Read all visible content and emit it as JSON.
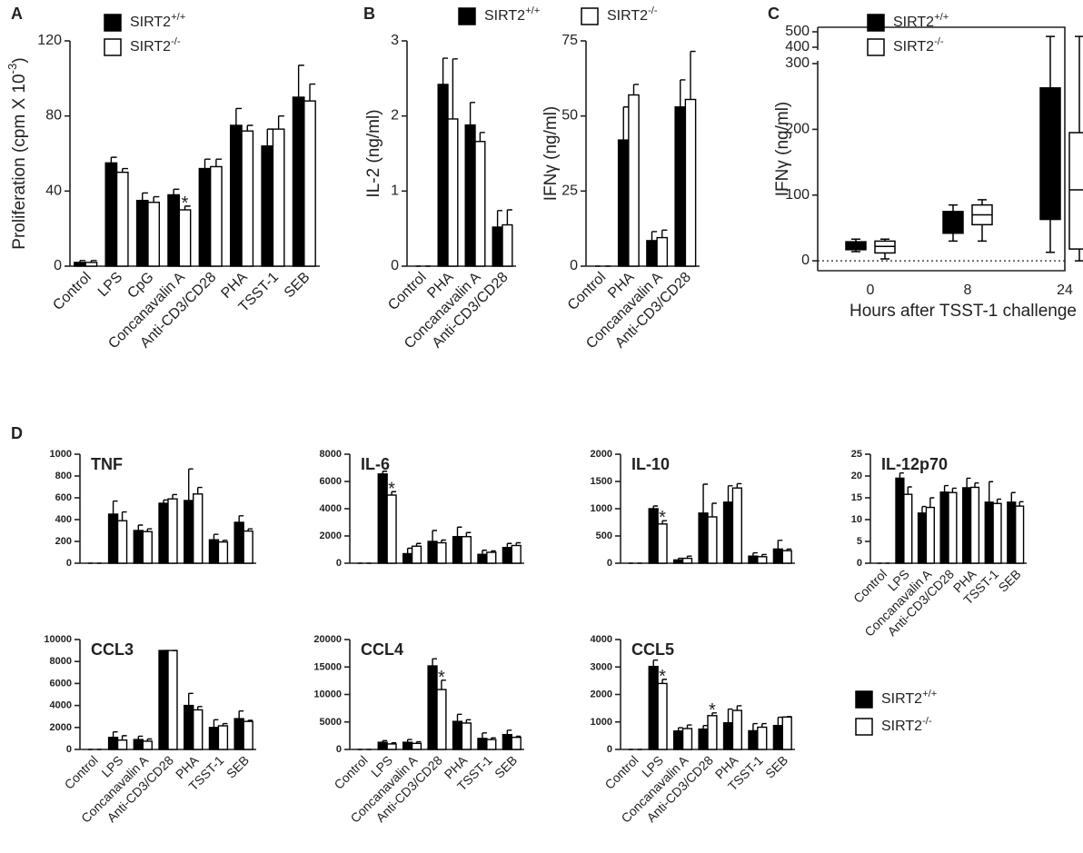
{
  "chart_data": [
    {
      "type": "bar",
      "panel": "A",
      "ylabel": "Proliferation (cpm X 10-3)",
      "categories": [
        "Control",
        "LPS",
        "CpG",
        "Concanavalin A",
        "Anti-CD3/CD28",
        "PHA",
        "TSST-1",
        "SEB"
      ],
      "series": [
        {
          "name": "SIRT2+/+",
          "color": "#000000",
          "values": [
            2,
            55,
            35,
            38,
            52,
            75,
            64,
            90
          ],
          "errors": [
            1,
            3,
            4,
            3,
            5,
            9,
            9,
            17
          ]
        },
        {
          "name": "SIRT2-/-",
          "color": "#ffffff",
          "values": [
            2,
            50,
            34,
            30,
            53,
            72,
            73,
            88
          ],
          "errors": [
            1,
            2,
            3,
            2,
            4,
            3,
            7,
            9
          ]
        }
      ],
      "ylim": [
        0,
        120
      ],
      "yticks": [
        0,
        40,
        80,
        120
      ],
      "annotations": [
        {
          "text": "*",
          "series": 1,
          "index": 3
        }
      ]
    },
    {
      "type": "bar",
      "panel": "B",
      "ylabel": "IL-2 (ng/ml)",
      "categories": [
        "Control",
        "PHA",
        "Concanavalin A",
        "Anti-CD3/CD28"
      ],
      "series": [
        {
          "name": "SIRT2+/+",
          "color": "#000000",
          "values": [
            0,
            2.42,
            1.88,
            0.52
          ],
          "errors": [
            0,
            0.35,
            0.3,
            0.22
          ]
        },
        {
          "name": "SIRT2-/-",
          "color": "#ffffff",
          "values": [
            0,
            1.96,
            1.66,
            0.55
          ],
          "errors": [
            0,
            0.8,
            0.12,
            0.2
          ]
        }
      ],
      "ylim": [
        0,
        3
      ],
      "yticks": [
        0,
        1,
        2,
        3
      ]
    },
    {
      "type": "bar",
      "ylabel": "IFNγ (ng/ml)",
      "categories": [
        "Control",
        "PHA",
        "Concanavalin A",
        "Anti-CD3/CD28"
      ],
      "series": [
        {
          "color": "#000000",
          "values": [
            0,
            42,
            8.5,
            53
          ],
          "errors": [
            0,
            11,
            3,
            9
          ]
        },
        {
          "color": "#ffffff",
          "values": [
            0,
            57,
            9.5,
            55.5
          ],
          "errors": [
            0,
            3.5,
            2.5,
            16
          ]
        }
      ],
      "ylim": [
        0,
        75
      ],
      "yticks": [
        0,
        25,
        50,
        75
      ]
    },
    {
      "type": "box",
      "panel": "C",
      "ylabel": "IFNγ (ng/ml)",
      "xlabel": "Hours after TSST-1 challenge",
      "categories": [
        "0",
        "8",
        "24"
      ],
      "series": [
        {
          "name": "SIRT2+/+",
          "color": "#000000",
          "min": [
            14,
            30,
            13
          ],
          "q1": [
            17,
            42,
            63
          ],
          "median": [
            22,
            62,
            180
          ],
          "q3": [
            29,
            75,
            263
          ],
          "max": [
            33,
            85,
            470
          ]
        },
        {
          "name": "SIRT2-/-",
          "color": "#ffffff",
          "min": [
            3,
            30,
            0
          ],
          "q1": [
            12,
            55,
            18
          ],
          "median": [
            22,
            70,
            108
          ],
          "q3": [
            30,
            85,
            195
          ],
          "max": [
            33,
            93,
            470
          ]
        }
      ],
      "ylim": [
        -15,
        500
      ],
      "yticks": [
        0,
        100,
        200,
        300,
        400,
        500
      ],
      "axis_break": [
        300,
        400
      ],
      "reference_line": 0
    },
    {
      "type": "bar",
      "panel": "D",
      "title": "TNF",
      "series": [
        {
          "color": "#000000",
          "values": [
            0,
            450,
            300,
            550,
            575,
            215,
            375
          ],
          "errors": [
            0,
            120,
            50,
            30,
            290,
            50,
            60
          ]
        },
        {
          "color": "#ffffff",
          "values": [
            0,
            390,
            290,
            590,
            635,
            195,
            295
          ],
          "errors": [
            0,
            80,
            25,
            40,
            60,
            15,
            20
          ]
        }
      ],
      "ylim": [
        0,
        1000
      ],
      "yticks": [
        0,
        200,
        400,
        600,
        800,
        1000
      ]
    },
    {
      "type": "bar",
      "title": "IL-6",
      "series": [
        {
          "color": "#000000",
          "values": [
            0,
            6550,
            700,
            1600,
            1950,
            650,
            1150
          ],
          "errors": [
            0,
            200,
            400,
            800,
            700,
            300,
            300
          ]
        },
        {
          "color": "#ffffff",
          "values": [
            0,
            5000,
            1250,
            1500,
            1950,
            800,
            1300
          ],
          "errors": [
            0,
            250,
            200,
            200,
            300,
            100,
            200
          ]
        }
      ],
      "ylim": [
        0,
        8000
      ],
      "yticks": [
        0,
        2000,
        4000,
        6000,
        8000
      ],
      "annotations": [
        {
          "text": "*",
          "series": 1,
          "index": 1
        }
      ]
    },
    {
      "type": "bar",
      "title": "IL-10",
      "series": [
        {
          "color": "#000000",
          "values": [
            0,
            1000,
            60,
            920,
            1120,
            130,
            260
          ],
          "errors": [
            0,
            50,
            30,
            530,
            300,
            60,
            160
          ]
        },
        {
          "color": "#ffffff",
          "values": [
            0,
            720,
            90,
            850,
            1380,
            120,
            230
          ],
          "errors": [
            0,
            60,
            40,
            250,
            80,
            40,
            30
          ]
        }
      ],
      "ylim": [
        0,
        2000
      ],
      "yticks": [
        0,
        500,
        1000,
        1500,
        2000
      ],
      "annotations": [
        {
          "text": "*",
          "series": 1,
          "index": 1
        }
      ]
    },
    {
      "type": "bar",
      "title": "IL-12p70",
      "categories": [
        "Control",
        "LPS",
        "Concanavalin A",
        "Anti-CD3/CD28",
        "PHA",
        "TSST-1",
        "SEB"
      ],
      "series": [
        {
          "color": "#000000",
          "values": [
            0,
            19.5,
            11.5,
            16.3,
            17.3,
            14,
            14
          ],
          "errors": [
            0,
            1.2,
            1.5,
            1.5,
            2.2,
            4.7,
            2.2
          ]
        },
        {
          "color": "#ffffff",
          "values": [
            0,
            15.8,
            12.8,
            16.2,
            17.4,
            13.7,
            13.1
          ],
          "errors": [
            0,
            1.7,
            2.2,
            1,
            1,
            1,
            1
          ]
        }
      ],
      "ylim": [
        0,
        25
      ],
      "yticks": [
        0,
        5,
        10,
        15,
        20,
        25
      ]
    },
    {
      "type": "bar",
      "title": "CCL3",
      "categories": [
        "Control",
        "LPS",
        "Concanavalin A",
        "Anti-CD3/CD28",
        "PHA",
        "TSST-1",
        "SEB"
      ],
      "series": [
        {
          "color": "#000000",
          "values": [
            0,
            1100,
            900,
            9000,
            4000,
            2000,
            2800
          ],
          "errors": [
            0,
            500,
            300,
            0,
            1100,
            700,
            700
          ]
        },
        {
          "color": "#ffffff",
          "values": [
            0,
            850,
            750,
            9000,
            3600,
            2150,
            2550
          ],
          "errors": [
            0,
            400,
            200,
            0,
            300,
            200,
            100
          ]
        }
      ],
      "ylim": [
        0,
        10000
      ],
      "yticks": [
        0,
        2000,
        4000,
        6000,
        8000,
        10000
      ]
    },
    {
      "type": "bar",
      "title": "CCL4",
      "categories": [
        "Control",
        "LPS",
        "Concanavalin A",
        "Anti-CD3/CD28",
        "PHA",
        "TSST-1",
        "SEB"
      ],
      "series": [
        {
          "color": "#000000",
          "values": [
            0,
            1300,
            1300,
            15200,
            5100,
            2000,
            2700
          ],
          "errors": [
            0,
            300,
            500,
            1300,
            1300,
            1000,
            800
          ]
        },
        {
          "color": "#ffffff",
          "values": [
            0,
            1000,
            1100,
            10900,
            4800,
            1800,
            2200
          ],
          "errors": [
            0,
            200,
            300,
            1700,
            600,
            300,
            200
          ]
        }
      ],
      "ylim": [
        0,
        20000
      ],
      "yticks": [
        0,
        5000,
        10000,
        15000,
        20000
      ],
      "annotations": [
        {
          "text": "*",
          "series": 1,
          "index": 3
        }
      ]
    },
    {
      "type": "bar",
      "title": "CCL5",
      "categories": [
        "Control",
        "LPS",
        "Concanavalin A",
        "Anti-CD3/CD28",
        "PHA",
        "TSST-1",
        "SEB"
      ],
      "series": [
        {
          "color": "#000000",
          "values": [
            0,
            3020,
            670,
            740,
            970,
            680,
            870
          ],
          "errors": [
            0,
            230,
            120,
            130,
            500,
            260,
            300
          ]
        },
        {
          "color": "#ffffff",
          "values": [
            0,
            2400,
            760,
            1230,
            1420,
            810,
            1180
          ],
          "errors": [
            0,
            150,
            130,
            100,
            170,
            130,
            20
          ]
        }
      ],
      "ylim": [
        0,
        4000
      ],
      "yticks": [
        0,
        1000,
        2000,
        3000,
        4000
      ],
      "annotations": [
        {
          "text": "*",
          "series": 1,
          "index": 1
        },
        {
          "text": "*",
          "series": 1,
          "index": 3
        }
      ]
    },
    {
      "type": "legend",
      "series": [
        {
          "name": "SIRT2+/+",
          "color": "#000000"
        },
        {
          "name": "SIRT2-/-",
          "color": "#ffffff"
        }
      ]
    }
  ]
}
